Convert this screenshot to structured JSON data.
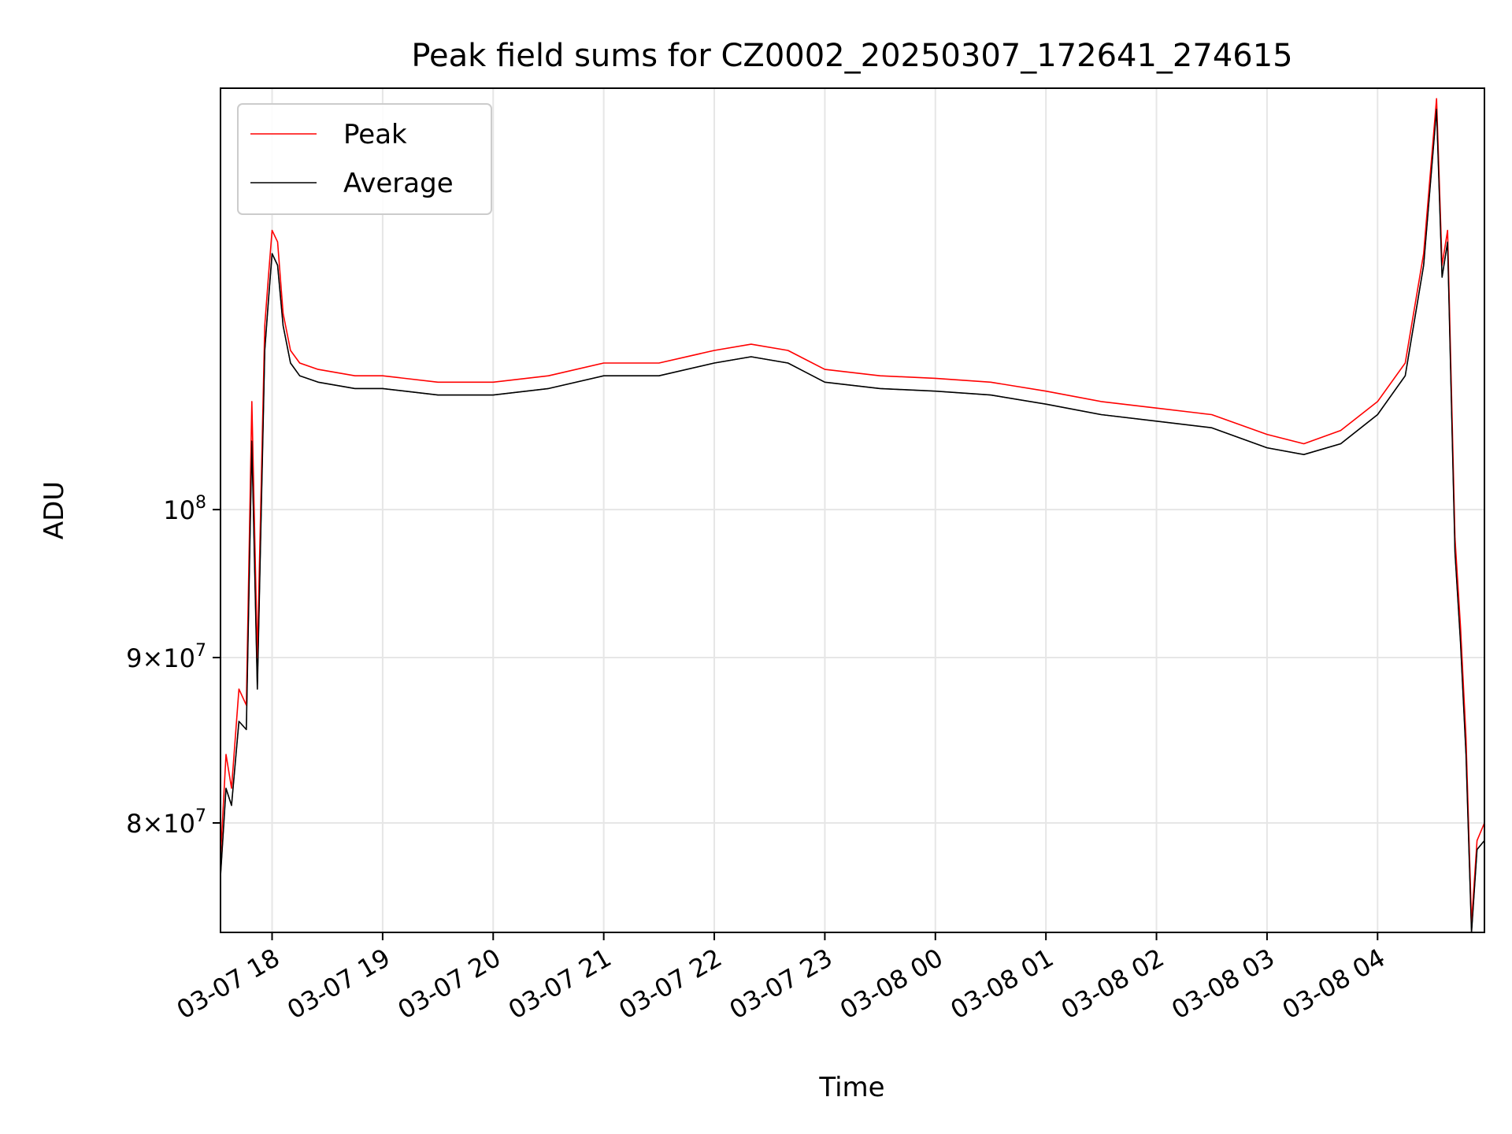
{
  "chart_data": {
    "type": "line",
    "title": "Peak field sums for CZ0002_20250307_172641_274615",
    "xlabel": "Time",
    "ylabel": "ADU",
    "x_axis": {
      "kind": "datetime",
      "range": [
        "2025-03-07 17:32",
        "2025-03-08 04:58"
      ],
      "tick_values": [
        "2025-03-07 18:00",
        "2025-03-07 19:00",
        "2025-03-07 20:00",
        "2025-03-07 21:00",
        "2025-03-07 22:00",
        "2025-03-07 23:00",
        "2025-03-08 00:00",
        "2025-03-08 01:00",
        "2025-03-08 02:00",
        "2025-03-08 03:00",
        "2025-03-08 04:00"
      ],
      "tick_labels": [
        "03-07 18",
        "03-07 19",
        "03-07 20",
        "03-07 21",
        "03-07 22",
        "03-07 23",
        "03-08 00",
        "03-08 01",
        "03-08 02",
        "03-08 03",
        "03-08 04"
      ]
    },
    "y_axis": {
      "scale": "log",
      "range": [
        74000000,
        135000000
      ],
      "ticks": [
        {
          "value": 80000000,
          "label_main": "8×10",
          "label_exp": "7"
        },
        {
          "value": 90000000,
          "label_main": "9×10",
          "label_exp": "7"
        },
        {
          "value": 100000000,
          "label_main": "10",
          "label_exp": "8"
        }
      ]
    },
    "grid": true,
    "legend_position": "top-left",
    "series": [
      {
        "name": "Peak",
        "color": "#ff0000",
        "x": [
          "2025-03-07 17:32",
          "2025-03-07 17:35",
          "2025-03-07 17:38",
          "2025-03-07 17:42",
          "2025-03-07 17:46",
          "2025-03-07 17:49",
          "2025-03-07 17:52",
          "2025-03-07 17:56",
          "2025-03-07 17:58",
          "2025-03-07 18:00",
          "2025-03-07 18:03",
          "2025-03-07 18:06",
          "2025-03-07 18:10",
          "2025-03-07 18:15",
          "2025-03-07 18:25",
          "2025-03-07 18:45",
          "2025-03-07 19:00",
          "2025-03-07 19:30",
          "2025-03-07 20:00",
          "2025-03-07 20:30",
          "2025-03-07 21:00",
          "2025-03-07 21:30",
          "2025-03-07 22:00",
          "2025-03-07 22:20",
          "2025-03-07 22:40",
          "2025-03-07 23:00",
          "2025-03-07 23:30",
          "2025-03-08 00:00",
          "2025-03-08 00:30",
          "2025-03-08 01:00",
          "2025-03-08 01:30",
          "2025-03-08 02:00",
          "2025-03-08 02:30",
          "2025-03-08 03:00",
          "2025-03-08 03:20",
          "2025-03-08 03:40",
          "2025-03-08 04:00",
          "2025-03-08 04:15",
          "2025-03-08 04:25",
          "2025-03-08 04:32",
          "2025-03-08 04:35",
          "2025-03-08 04:38",
          "2025-03-08 04:42",
          "2025-03-08 04:45",
          "2025-03-08 04:48",
          "2025-03-08 04:51",
          "2025-03-08 04:54",
          "2025-03-08 04:58"
        ],
        "y": [
          78000000,
          84000000,
          82000000,
          88000000,
          87000000,
          108000000,
          90000000,
          114000000,
          118000000,
          122000000,
          121000000,
          115000000,
          112000000,
          111000000,
          110500000,
          110000000,
          110000000,
          109500000,
          109500000,
          110000000,
          111000000,
          111000000,
          112000000,
          112500000,
          112000000,
          110500000,
          110000000,
          109800000,
          109500000,
          108800000,
          108000000,
          107500000,
          107000000,
          105500000,
          104800000,
          105800000,
          108000000,
          111000000,
          120000000,
          134000000,
          119000000,
          122000000,
          98000000,
          92000000,
          85000000,
          74500000,
          79000000,
          80000000
        ]
      },
      {
        "name": "Average",
        "color": "#000000",
        "x": [
          "2025-03-07 17:32",
          "2025-03-07 17:35",
          "2025-03-07 17:38",
          "2025-03-07 17:42",
          "2025-03-07 17:46",
          "2025-03-07 17:49",
          "2025-03-07 17:52",
          "2025-03-07 17:56",
          "2025-03-07 17:58",
          "2025-03-07 18:00",
          "2025-03-07 18:03",
          "2025-03-07 18:06",
          "2025-03-07 18:10",
          "2025-03-07 18:15",
          "2025-03-07 18:25",
          "2025-03-07 18:45",
          "2025-03-07 19:00",
          "2025-03-07 19:30",
          "2025-03-07 20:00",
          "2025-03-07 20:30",
          "2025-03-07 21:00",
          "2025-03-07 21:30",
          "2025-03-07 22:00",
          "2025-03-07 22:20",
          "2025-03-07 22:40",
          "2025-03-07 23:00",
          "2025-03-07 23:30",
          "2025-03-08 00:00",
          "2025-03-08 00:30",
          "2025-03-08 01:00",
          "2025-03-08 01:30",
          "2025-03-08 02:00",
          "2025-03-08 02:30",
          "2025-03-08 03:00",
          "2025-03-08 03:20",
          "2025-03-08 03:40",
          "2025-03-08 04:00",
          "2025-03-08 04:15",
          "2025-03-08 04:25",
          "2025-03-08 04:32",
          "2025-03-08 04:35",
          "2025-03-08 04:38",
          "2025-03-08 04:42",
          "2025-03-08 04:45",
          "2025-03-08 04:48",
          "2025-03-08 04:51",
          "2025-03-08 04:54",
          "2025-03-08 04:58"
        ],
        "y": [
          77000000,
          82000000,
          81000000,
          86000000,
          85500000,
          105000000,
          88000000,
          112000000,
          116000000,
          120000000,
          119000000,
          114000000,
          111000000,
          110000000,
          109500000,
          109000000,
          109000000,
          108500000,
          108500000,
          109000000,
          110000000,
          110000000,
          111000000,
          111500000,
          111000000,
          109500000,
          109000000,
          108800000,
          108500000,
          107800000,
          107000000,
          106500000,
          106000000,
          104500000,
          104000000,
          104800000,
          107000000,
          110000000,
          119000000,
          133000000,
          118000000,
          121000000,
          97000000,
          91000000,
          84000000,
          74000000,
          78500000,
          79000000
        ]
      }
    ]
  }
}
